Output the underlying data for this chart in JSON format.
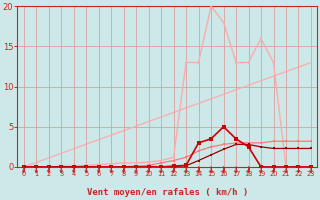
{
  "bg_color": "#cce8e8",
  "grid_color": "#d8a0a0",
  "xlabel": "Vent moyen/en rafales ( km/h )",
  "xlim": [
    -0.5,
    23.5
  ],
  "ylim": [
    0,
    20
  ],
  "yticks": [
    0,
    5,
    10,
    15,
    20
  ],
  "xticks": [
    0,
    1,
    2,
    3,
    4,
    5,
    6,
    7,
    8,
    9,
    10,
    11,
    12,
    13,
    14,
    15,
    16,
    17,
    18,
    19,
    20,
    21,
    22,
    23
  ],
  "line_diagonal": {
    "x": [
      0,
      23
    ],
    "y": [
      0,
      13.0
    ],
    "color": "#ffaaaa",
    "lw": 0.9
  },
  "line_rafales": {
    "x": [
      0,
      1,
      2,
      3,
      4,
      5,
      6,
      7,
      8,
      9,
      10,
      11,
      12,
      13,
      14,
      15,
      16,
      17,
      18,
      19,
      20,
      21,
      22,
      23
    ],
    "y": [
      0,
      0,
      0,
      0.1,
      0.1,
      0.2,
      0.3,
      0.4,
      0.5,
      0.5,
      0.6,
      0.8,
      1.2,
      13,
      13,
      20,
      18,
      13,
      13,
      16,
      13,
      0,
      0.1,
      0
    ],
    "color": "#ffaaaa",
    "lw": 1.0,
    "ms": 2.0
  },
  "line_moyen": {
    "x": [
      0,
      1,
      2,
      3,
      4,
      5,
      6,
      7,
      8,
      9,
      10,
      11,
      12,
      13,
      14,
      15,
      16,
      17,
      18,
      19,
      20,
      21,
      22,
      23
    ],
    "y": [
      0,
      0,
      0,
      0,
      0,
      0,
      0,
      0,
      0,
      0,
      0,
      0,
      0.1,
      0.2,
      3.0,
      3.5,
      5.0,
      3.5,
      2.5,
      0,
      0,
      0,
      0,
      0
    ],
    "color": "#cc0000",
    "lw": 1.2,
    "ms": 2.5
  },
  "line_cumul_rafales": {
    "x": [
      0,
      1,
      2,
      3,
      4,
      5,
      6,
      7,
      8,
      9,
      10,
      11,
      12,
      13,
      14,
      15,
      16,
      17,
      18,
      19,
      20,
      21,
      22,
      23
    ],
    "y": [
      0,
      0,
      0,
      0,
      0,
      0,
      0,
      0,
      0.05,
      0.1,
      0.2,
      0.5,
      0.8,
      1.2,
      2.0,
      2.5,
      2.8,
      3.0,
      3.0,
      3.0,
      3.2,
      3.2,
      3.2,
      3.2
    ],
    "color": "#ff7777",
    "lw": 0.9,
    "ms": 1.8
  },
  "line_cumul_moyen": {
    "x": [
      0,
      1,
      2,
      3,
      4,
      5,
      6,
      7,
      8,
      9,
      10,
      11,
      12,
      13,
      14,
      15,
      16,
      17,
      18,
      19,
      20,
      21,
      22,
      23
    ],
    "y": [
      0,
      0,
      0,
      0,
      0,
      0,
      0,
      0,
      0,
      0,
      0,
      0,
      0.05,
      0.15,
      0.8,
      1.5,
      2.2,
      2.8,
      2.8,
      2.5,
      2.3,
      2.3,
      2.3,
      2.3
    ],
    "color": "#990000",
    "lw": 0.9,
    "ms": 1.8
  },
  "arrows_x": [
    0,
    1,
    2,
    3,
    4,
    5,
    6,
    7,
    8,
    9,
    10,
    11,
    12,
    13,
    14,
    15,
    16,
    17,
    18,
    19,
    20,
    21,
    22,
    23
  ],
  "arrow_color": "#cc2222",
  "axis_color": "#cc2222",
  "tick_color": "#cc2222",
  "label_color": "#cc2222",
  "label_fontsize": 6.5,
  "ytick_fontsize": 6,
  "xtick_fontsize": 4.8
}
